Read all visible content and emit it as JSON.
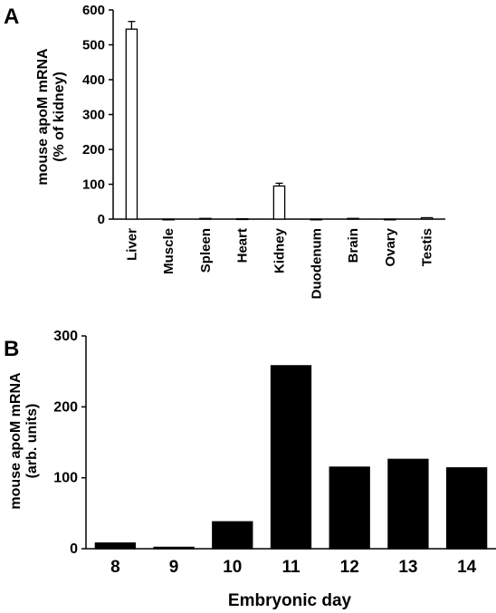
{
  "chart_data": [
    {
      "panel_label": "A",
      "type": "bar",
      "title": "",
      "xlabel": "",
      "ylabel_lines": [
        "mouse apoM mRNA",
        "(% of kidney)"
      ],
      "ylim": [
        0,
        600
      ],
      "yticks": [
        0,
        100,
        200,
        300,
        400,
        500,
        600
      ],
      "categories": [
        "Liver",
        "Muscle",
        "Spleen",
        "Heart",
        "Kidney",
        "Duodenum",
        "Brain",
        "Ovary",
        "Testis"
      ],
      "values": [
        545,
        0,
        2,
        1,
        95,
        0,
        2,
        0,
        4
      ],
      "error_plus": [
        22,
        0,
        0,
        0,
        8,
        0,
        0,
        0,
        0
      ],
      "bar_color": "#ffffff",
      "edge_color": "#000000",
      "grid": false
    },
    {
      "panel_label": "B",
      "type": "bar",
      "title": "",
      "xlabel": "Embryonic day",
      "ylabel_lines": [
        "mouse apoM mRNA",
        "(arb. units)"
      ],
      "ylim": [
        0,
        300
      ],
      "yticks": [
        0,
        100,
        200,
        300
      ],
      "categories": [
        "8",
        "9",
        "10",
        "11",
        "12",
        "13",
        "14"
      ],
      "values": [
        8,
        2,
        38,
        258,
        115,
        126,
        114
      ],
      "bar_color": "#000000",
      "edge_color": "#000000",
      "grid": false
    }
  ]
}
